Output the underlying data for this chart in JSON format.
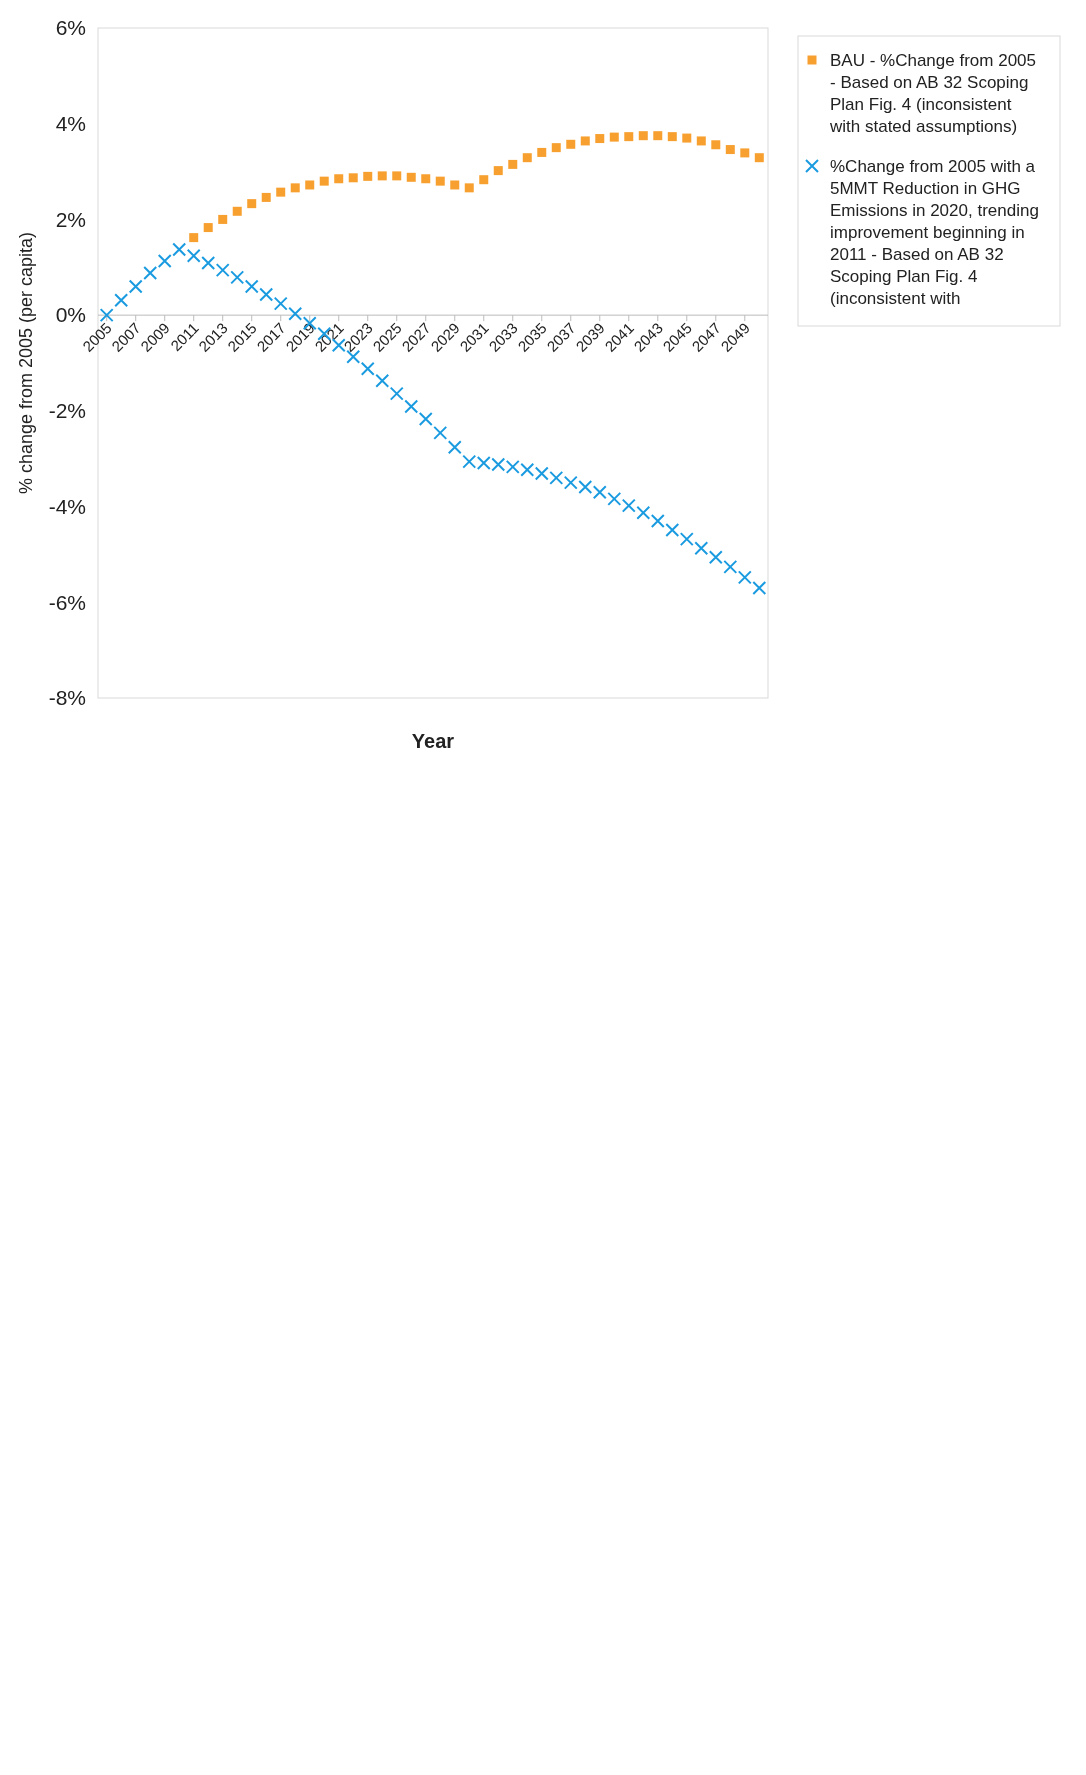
{
  "chart_data": {
    "type": "scatter",
    "xlabel": "Year",
    "ylabel": "% change from 2005 (per capita)",
    "x": [
      2005,
      2006,
      2007,
      2008,
      2009,
      2010,
      2011,
      2012,
      2013,
      2014,
      2015,
      2016,
      2017,
      2018,
      2019,
      2020,
      2021,
      2022,
      2023,
      2024,
      2025,
      2026,
      2027,
      2028,
      2029,
      2030,
      2031,
      2032,
      2033,
      2034,
      2035,
      2036,
      2037,
      2038,
      2039,
      2040,
      2041,
      2042,
      2043,
      2044,
      2045,
      2046,
      2047,
      2048,
      2049,
      2050
    ],
    "series": [
      {
        "name": "BAU - %Change from 2005 - Based on AB 32 Scoping Plan Fig. 4 (inconsistent with stated assumptions)",
        "color": "#f7a030",
        "marker": "square",
        "values": [
          null,
          null,
          null,
          null,
          null,
          null,
          1.62,
          1.83,
          2.0,
          2.17,
          2.33,
          2.46,
          2.57,
          2.66,
          2.72,
          2.8,
          2.85,
          2.87,
          2.9,
          2.91,
          2.91,
          2.88,
          2.85,
          2.8,
          2.72,
          2.66,
          2.83,
          3.02,
          3.15,
          3.29,
          3.4,
          3.5,
          3.57,
          3.64,
          3.69,
          3.72,
          3.73,
          3.75,
          3.75,
          3.73,
          3.7,
          3.64,
          3.56,
          3.46,
          3.39,
          3.29
        ]
      },
      {
        "name": "%Change from 2005 with a 5MMT Reduction in GHG Emissions in 2020, trending improvement beginning in 2011 - Based on AB 32 Scoping Plan Fig. 4 (inconsistent with",
        "color": "#1a9be0",
        "marker": "cross",
        "values": [
          0,
          0.31,
          0.6,
          0.88,
          1.13,
          1.37,
          1.24,
          1.09,
          0.94,
          0.79,
          0.6,
          0.43,
          0.24,
          0.03,
          -0.17,
          -0.39,
          -0.63,
          -0.87,
          -1.12,
          -1.37,
          -1.64,
          -1.91,
          -2.17,
          -2.46,
          -2.76,
          -3.06,
          -3.09,
          -3.12,
          -3.17,
          -3.23,
          -3.31,
          -3.4,
          -3.5,
          -3.59,
          -3.7,
          -3.84,
          -3.98,
          -4.13,
          -4.3,
          -4.49,
          -4.68,
          -4.87,
          -5.06,
          -5.26,
          -5.48,
          -5.7
        ]
      }
    ],
    "xlim": [
      2004.4,
      2050.6
    ],
    "xticks": [
      2005,
      2007,
      2009,
      2011,
      2013,
      2015,
      2017,
      2019,
      2021,
      2023,
      2025,
      2027,
      2029,
      2031,
      2033,
      2035,
      2037,
      2039,
      2041,
      2043,
      2045,
      2047,
      2049
    ],
    "ylim": [
      -8,
      6
    ],
    "yticks": [
      {
        "value": -8,
        "label": "-8%"
      },
      {
        "value": -6,
        "label": "-6%"
      },
      {
        "value": -4,
        "label": "-4%"
      },
      {
        "value": -2,
        "label": "-2%"
      },
      {
        "value": 0,
        "label": "0%"
      },
      {
        "value": 2,
        "label": "2%"
      },
      {
        "value": 4,
        "label": "4%"
      },
      {
        "value": 6,
        "label": "6%"
      }
    ],
    "legend": "right",
    "grid": false
  }
}
